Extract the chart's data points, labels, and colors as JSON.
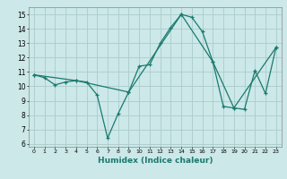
{
  "title": "",
  "xlabel": "Humidex (Indice chaleur)",
  "background_color": "#cce8e8",
  "grid_color": "#aacccc",
  "line_color": "#1a7a6e",
  "xlim": [
    -0.5,
    23.5
  ],
  "ylim": [
    5.8,
    15.5
  ],
  "yticks": [
    6,
    7,
    8,
    9,
    10,
    11,
    12,
    13,
    14,
    15
  ],
  "xticks": [
    0,
    1,
    2,
    3,
    4,
    5,
    6,
    7,
    8,
    9,
    10,
    11,
    12,
    13,
    14,
    15,
    16,
    17,
    18,
    19,
    20,
    21,
    22,
    23
  ],
  "line1_x": [
    0,
    1,
    2,
    3,
    4,
    5,
    6,
    7,
    8,
    9,
    10,
    11,
    12,
    13,
    14,
    15,
    16,
    17,
    18,
    19,
    20,
    21,
    22,
    23
  ],
  "line1_y": [
    10.8,
    10.6,
    10.1,
    10.3,
    10.4,
    10.3,
    9.4,
    6.4,
    8.1,
    9.6,
    11.4,
    11.5,
    13.0,
    14.1,
    15.0,
    14.8,
    13.8,
    11.7,
    8.6,
    8.5,
    8.4,
    11.1,
    9.5,
    12.7
  ],
  "line2_x": [
    0,
    4,
    9,
    14,
    17,
    19,
    23
  ],
  "line2_y": [
    10.8,
    10.4,
    9.6,
    15.0,
    11.7,
    8.5,
    12.7
  ]
}
